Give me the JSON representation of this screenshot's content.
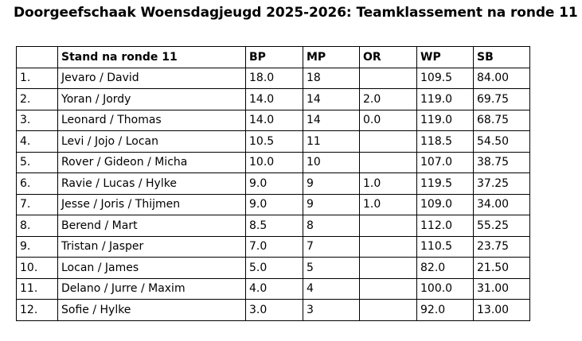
{
  "title": "Doorgeefschaak Woensdagjeugd 2025-2026: Teamklassement na ronde 11",
  "table": {
    "headers": [
      "",
      "Stand na ronde 11",
      "BP",
      "MP",
      "OR",
      "WP",
      "SB"
    ],
    "rows": [
      [
        "1.",
        "Jevaro / David",
        "18.0",
        "18",
        "",
        "109.5",
        "84.00"
      ],
      [
        "2.",
        "Yoran / Jordy",
        "14.0",
        "14",
        "2.0",
        "119.0",
        "69.75"
      ],
      [
        "3.",
        "Leonard / Thomas",
        "14.0",
        "14",
        "0.0",
        "119.0",
        "68.75"
      ],
      [
        "4.",
        "Levi / Jojo / Locan",
        "10.5",
        "11",
        "",
        "118.5",
        "54.50"
      ],
      [
        "5.",
        "Rover / Gideon / Micha",
        "10.0",
        "10",
        "",
        "107.0",
        "38.75"
      ],
      [
        "6.",
        "Ravie / Lucas / Hylke",
        "9.0",
        "9",
        "1.0",
        "119.5",
        "37.25"
      ],
      [
        "7.",
        "Jesse / Joris / Thijmen",
        "9.0",
        "9",
        "1.0",
        "109.0",
        "34.00"
      ],
      [
        "8.",
        "Berend / Mart",
        "8.5",
        "8",
        "",
        "112.0",
        "55.25"
      ],
      [
        "9.",
        "Tristan / Jasper",
        "7.0",
        "7",
        "",
        "110.5",
        "23.75"
      ],
      [
        "10.",
        "Locan / James",
        "5.0",
        "5",
        "",
        "82.0",
        "21.50"
      ],
      [
        "11.",
        "Delano / Jurre / Maxim",
        "4.0",
        "4",
        "",
        "100.0",
        "31.00"
      ],
      [
        "12.",
        "Sofie / Hylke",
        "3.0",
        "3",
        "",
        "92.0",
        "13.00"
      ]
    ]
  }
}
